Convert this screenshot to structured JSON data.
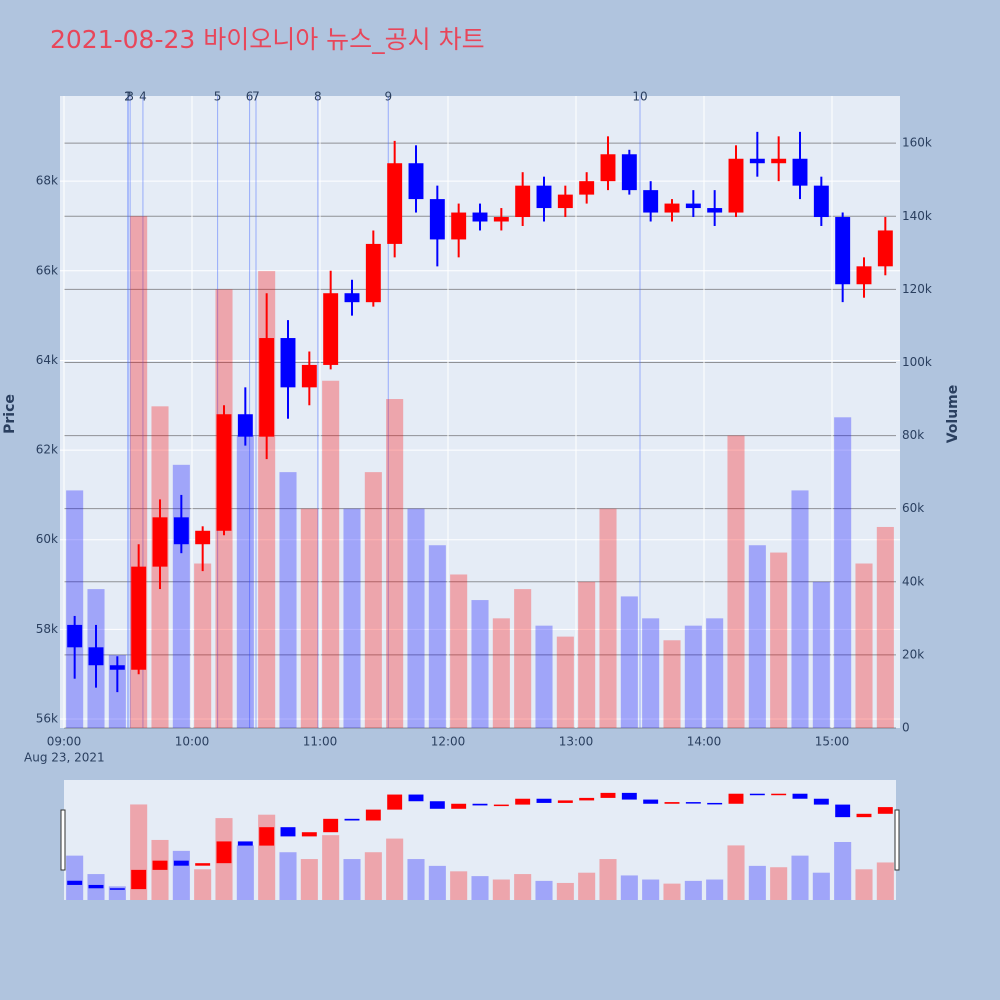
{
  "chart_data": {
    "type": "candlestick",
    "title": "2021-08-23 바이오니아 뉴스_공시 차트",
    "y_axis_label": "Price",
    "y2_axis_label": "Volume",
    "x_sublabel": "Aug 23, 2021",
    "up_color": "#ff0000",
    "down_color": "#0000ff",
    "xlim": [
      "09:00",
      "15:30"
    ],
    "xticks": [
      "09:00",
      "10:00",
      "11:00",
      "12:00",
      "13:00",
      "14:00",
      "15:00"
    ],
    "ylim": [
      55800,
      69900
    ],
    "yticks": [
      {
        "value": 56000,
        "label": "56k"
      },
      {
        "value": 58000,
        "label": "58k"
      },
      {
        "value": 60000,
        "label": "60k"
      },
      {
        "value": 62000,
        "label": "62k"
      },
      {
        "value": 64000,
        "label": "64k"
      },
      {
        "value": 66000,
        "label": "66k"
      },
      {
        "value": 68000,
        "label": "68k"
      }
    ],
    "y2lim": [
      0,
      172900
    ],
    "y2ticks": [
      0,
      {
        "value": 20000,
        "label": "20k"
      },
      {
        "value": 40000,
        "label": "40k"
      },
      {
        "value": 60000,
        "label": "60k"
      },
      {
        "value": 80000,
        "label": "80k"
      },
      {
        "value": 100000,
        "label": "100k"
      },
      {
        "value": 120000,
        "label": "120k"
      },
      {
        "value": 140000,
        "label": "140k"
      },
      {
        "value": 160000,
        "label": "160k"
      }
    ],
    "grid": true,
    "x": [
      "09:00",
      "09:10",
      "09:20",
      "09:30",
      "09:40",
      "09:50",
      "10:00",
      "10:10",
      "10:20",
      "10:30",
      "10:40",
      "10:50",
      "11:00",
      "11:10",
      "11:20",
      "11:30",
      "11:40",
      "11:50",
      "12:00",
      "12:10",
      "12:20",
      "12:30",
      "12:40",
      "12:50",
      "13:00",
      "13:10",
      "13:20",
      "13:30",
      "13:40",
      "13:50",
      "14:00",
      "14:10",
      "14:20",
      "14:30",
      "14:40",
      "14:50",
      "15:00",
      "15:10",
      "15:20"
    ],
    "open": [
      58100,
      57600,
      57200,
      57100,
      59400,
      60500,
      59900,
      60200,
      62800,
      62300,
      64500,
      63400,
      63900,
      65500,
      65300,
      66600,
      68400,
      67600,
      66700,
      67300,
      67100,
      67200,
      67900,
      67400,
      67700,
      68000,
      68600,
      67800,
      67300,
      67500,
      67400,
      67300,
      68500,
      68400,
      68500,
      67900,
      67200,
      65700,
      66100
    ],
    "high": [
      58300,
      58100,
      57400,
      59900,
      60900,
      61000,
      60300,
      63000,
      63400,
      65500,
      64900,
      64200,
      66000,
      65800,
      66900,
      68900,
      68800,
      67900,
      67500,
      67500,
      67400,
      68200,
      68100,
      67900,
      68200,
      69000,
      68700,
      68000,
      67600,
      67800,
      67800,
      68800,
      69100,
      69000,
      69100,
      68100,
      67300,
      66300,
      67200
    ],
    "low": [
      56900,
      56700,
      56600,
      57000,
      58900,
      59700,
      59300,
      60100,
      62100,
      61800,
      62700,
      63000,
      63800,
      65000,
      65200,
      66300,
      67300,
      66100,
      66300,
      66900,
      66900,
      67000,
      67100,
      67200,
      67500,
      67800,
      67700,
      67100,
      67100,
      67200,
      67000,
      67200,
      68100,
      68000,
      67600,
      67000,
      65300,
      65400,
      65900
    ],
    "close": [
      57600,
      57200,
      57100,
      59400,
      60500,
      59900,
      60200,
      62800,
      62300,
      64500,
      63400,
      63900,
      65500,
      65300,
      66600,
      68400,
      67600,
      66700,
      67300,
      67100,
      67200,
      67900,
      67400,
      67700,
      68000,
      68600,
      67800,
      67300,
      67500,
      67400,
      67300,
      68500,
      68400,
      68500,
      67900,
      67200,
      65700,
      66100,
      66900
    ],
    "volume": [
      65000,
      38000,
      20000,
      140000,
      88000,
      72000,
      45000,
      120000,
      80000,
      125000,
      70000,
      60000,
      95000,
      60000,
      70000,
      90000,
      60000,
      50000,
      42000,
      35000,
      30000,
      38000,
      28000,
      25000,
      40000,
      60000,
      36000,
      30000,
      24000,
      28000,
      30000,
      80000,
      50000,
      48000,
      65000,
      40000,
      85000,
      45000,
      55000
    ],
    "annotations": [
      {
        "label": "1",
        "x": "09:30"
      },
      {
        "label": "2",
        "x": "09:30"
      },
      {
        "label": "3",
        "x": "09:31"
      },
      {
        "label": "4",
        "x": "09:37"
      },
      {
        "label": "5",
        "x": "10:12"
      },
      {
        "label": "6",
        "x": "10:27"
      },
      {
        "label": "7",
        "x": "10:30"
      },
      {
        "label": "8",
        "x": "10:59"
      },
      {
        "label": "9",
        "x": "11:32"
      },
      {
        "label": "10",
        "x": "13:30"
      }
    ]
  }
}
